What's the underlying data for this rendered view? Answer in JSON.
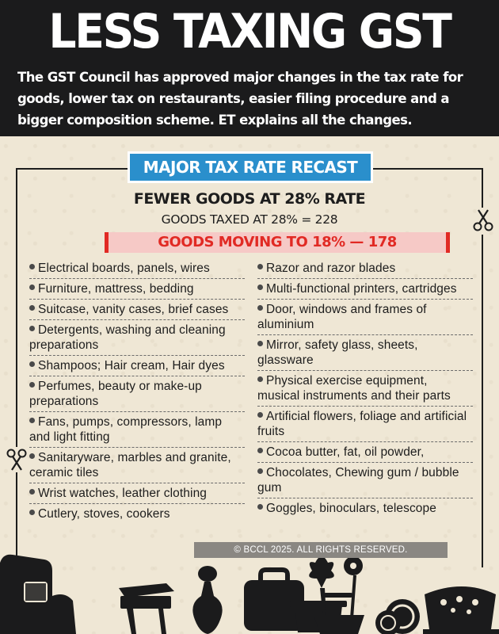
{
  "header": {
    "title": "LESS TAXING GST",
    "intro": "The GST Council has approved major changes in the tax rate for goods, lower tax on restaurants, easier filing procedure and a bigger composition scheme. ET explains all the changes."
  },
  "section": {
    "badge": "MAJOR TAX RATE RECAST",
    "subhead": "FEWER GOODS AT 28% RATE",
    "goods_at_28": "GOODS TAXED AT 28% = 228",
    "moving_banner": "GOODS MOVING TO 18% — 178"
  },
  "left_items": [
    "Electrical boards, panels, wires",
    "Furniture, mattress, bedding",
    "Suitcase, vanity cases, brief cases",
    "Detergents, washing and cleaning preparations",
    "Shampoos; Hair cream, Hair dyes",
    "Perfumes, beauty or make-up preparations",
    "Fans, pumps, compressors, lamp and light fitting",
    "Sanitaryware, marbles and granite, ceramic tiles",
    "Wrist watches, leather clothing",
    "Cutlery, stoves, cookers"
  ],
  "right_items": [
    "Razor and razor blades",
    "Multi-functional printers, cartridges",
    "Door, windows and frames of aluminium",
    "Mirror, safety glass, sheets, glassware",
    "Physical exercise equipment, musical instruments and their parts",
    "Artificial flowers, foliage and artificial fruits",
    "Cocoa butter, fat, oil powder,",
    "Chocolates, Chewing gum / bubble gum",
    "Goggles, binoculars, telescope"
  ],
  "copyright": "© BCCL 2025. ALL RIGHTS RESERVED.",
  "icons": {
    "scissors": "scissors-icon",
    "bottom_art": [
      "armchair-icon",
      "stove-icon",
      "vase-icon",
      "suitcase-icon",
      "cooking-pot-icon",
      "flower-icon",
      "plates-icon",
      "cookware-icon"
    ]
  },
  "colors": {
    "header_bg": "#1b1b1c",
    "paper_bg": "#efe7d5",
    "badge_blue": "#2a8fcc",
    "banner_red": "#e12a24",
    "banner_pink": "#f6c9c6"
  }
}
